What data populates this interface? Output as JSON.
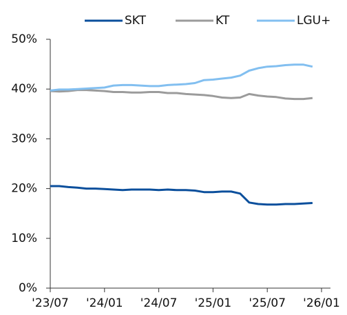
{
  "chart_data": {
    "type": "line",
    "categories": [
      "'23/07",
      null,
      null,
      null,
      null,
      null,
      "'24/01",
      null,
      null,
      null,
      null,
      null,
      "'24/07",
      null,
      null,
      null,
      null,
      null,
      "'25/01",
      null,
      null,
      null,
      null,
      null,
      "'25/07",
      null,
      null,
      null,
      null,
      null,
      "'26/01"
    ],
    "series": [
      {
        "name": "SKT",
        "color": "#0b4f9c",
        "values": [
          20.5,
          20.5,
          20.3,
          20.2,
          20.0,
          20.0,
          19.9,
          19.8,
          19.7,
          19.8,
          19.8,
          19.8,
          19.7,
          19.8,
          19.7,
          19.7,
          19.6,
          19.3,
          19.3,
          19.4,
          19.4,
          19.0,
          17.2,
          16.9,
          16.8,
          16.8,
          16.9,
          16.9,
          17.0,
          17.1,
          null
        ]
      },
      {
        "name": "KT",
        "color": "#9b9b9b",
        "values": [
          39.6,
          39.5,
          39.6,
          39.8,
          39.8,
          39.7,
          39.6,
          39.4,
          39.4,
          39.3,
          39.3,
          39.4,
          39.4,
          39.2,
          39.2,
          39.0,
          38.9,
          38.8,
          38.6,
          38.3,
          38.2,
          38.3,
          39.0,
          38.7,
          38.5,
          38.4,
          38.1,
          38.0,
          38.0,
          38.2,
          null
        ]
      },
      {
        "name": "LGU+",
        "color": "#82bff0",
        "values": [
          39.7,
          39.9,
          39.9,
          40.0,
          40.1,
          40.2,
          40.3,
          40.7,
          40.8,
          40.8,
          40.7,
          40.6,
          40.6,
          40.8,
          40.9,
          41.0,
          41.2,
          41.8,
          41.9,
          42.1,
          42.3,
          42.7,
          43.7,
          44.2,
          44.5,
          44.6,
          44.8,
          44.9,
          44.9,
          44.5,
          null
        ]
      }
    ],
    "ylim": [
      0,
      50
    ],
    "yticks": [
      {
        "value": 0,
        "label": "0%"
      },
      {
        "value": 10,
        "label": "10%"
      },
      {
        "value": 20,
        "label": "20%"
      },
      {
        "value": 30,
        "label": "30%"
      },
      {
        "value": 40,
        "label": "40%"
      },
      {
        "value": 50,
        "label": "50%"
      }
    ],
    "legend": "top"
  }
}
